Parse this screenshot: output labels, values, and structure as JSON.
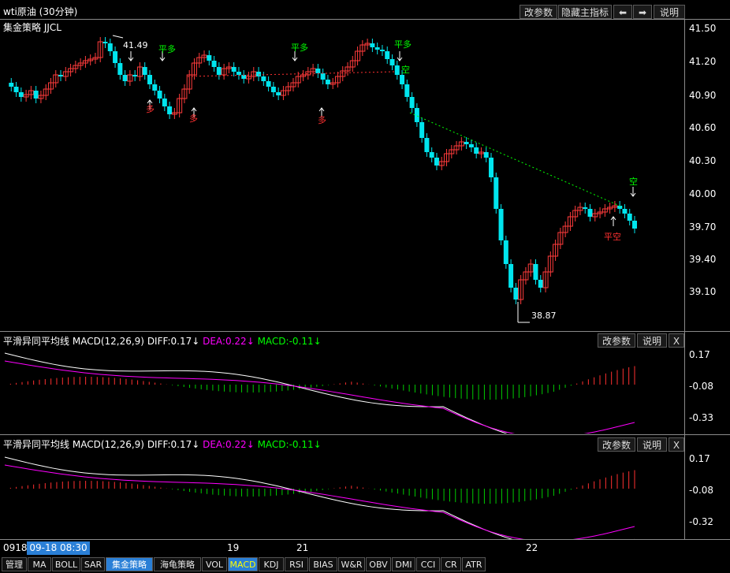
{
  "header": {
    "title": "wti原油 (30分钟)",
    "strategy_label": "集金策略 JJCL",
    "buttons": [
      "改参数",
      "隐藏主指标",
      "⬅",
      "➡",
      "说明"
    ]
  },
  "price_axis": [
    "41.50",
    "41.20",
    "40.90",
    "40.60",
    "40.30",
    "40.00",
    "39.70",
    "39.40",
    "39.10"
  ],
  "annotations": {
    "high_label": "41.49",
    "low_label": "38.87",
    "signals": [
      {
        "text": "平多",
        "color": "#00ff00"
      },
      {
        "text": "平多",
        "color": "#00ff00"
      },
      {
        "text": "平多",
        "color": "#00ff00"
      },
      {
        "text": "多",
        "color": "#ff3030"
      },
      {
        "text": "多",
        "color": "#ff3030"
      },
      {
        "text": "多",
        "color": "#ff3030"
      },
      {
        "text": "空",
        "color": "#00ff00"
      },
      {
        "text": "空",
        "color": "#00ff00"
      },
      {
        "text": "平空",
        "color": "#ff3030"
      }
    ]
  },
  "macd1": {
    "name": "平滑异同平均线",
    "params": "MACD(12,26,9)",
    "diff": "DIFF:0.17↓",
    "dea": "DEA:0.22↓",
    "macd": "MACD:-0.11↓",
    "axis": [
      "0.17",
      "-0.08",
      "-0.33"
    ],
    "buttons": [
      "改参数",
      "说明",
      "X"
    ]
  },
  "macd2": {
    "name": "平滑异同平均线",
    "params": "MACD(12,26,9)",
    "diff": "DIFF:0.17↓",
    "dea": "DEA:0.22↓",
    "macd": "MACD:-0.11↓",
    "axis": [
      "0.17",
      "-0.08",
      "-0.32"
    ],
    "buttons": [
      "改参数",
      "说明",
      "X"
    ]
  },
  "time_axis": {
    "start": "0918",
    "cursor": "09-18 08:30",
    "labels": [
      "19",
      "21",
      "22"
    ]
  },
  "tabs": [
    "管理",
    "MA",
    "BOLL",
    "SAR",
    "集金策略",
    "海龟策略",
    "VOL",
    "MACD",
    "KDJ",
    "RSI",
    "BIAS",
    "W&R",
    "OBV",
    "DMI",
    "CCI",
    "CR",
    "ATR"
  ],
  "active_tabs": [
    "集金策略",
    "MACD"
  ],
  "colors": {
    "up": "#ff3b3b",
    "down": "#00e5ee",
    "diff": "#ffffff",
    "dea": "#ff00ff",
    "hist_up": "#ff3030",
    "hist_down": "#00cc00"
  }
}
